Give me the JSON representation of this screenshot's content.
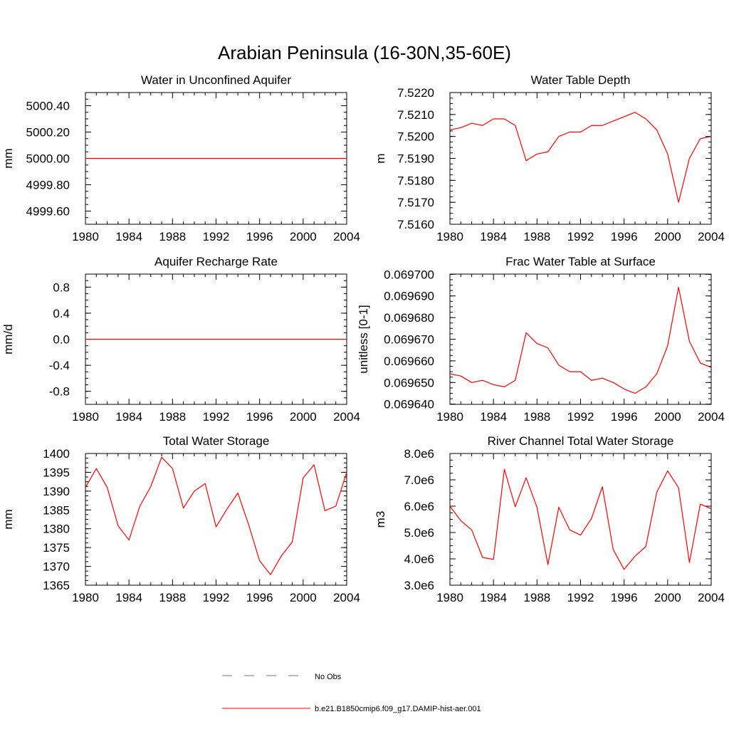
{
  "figure": {
    "title": "Arabian Peninsula (16-30N,35-60E)",
    "legend_items": [
      {
        "label": "No Obs",
        "color": "#6a6ab8",
        "style": "dashed"
      },
      {
        "label": "b.e21.B1850cmip6.f09_g17.DAMIP-hist-aer.001",
        "color": "#ff0000",
        "style": "solid"
      }
    ]
  },
  "chart_data": [
    {
      "type": "line",
      "title": "Water in Unconfined Aquifer",
      "ylabel": "mm",
      "xlim": [
        1980,
        2004
      ],
      "ylim": [
        4999.5,
        5000.5
      ],
      "xticks": [
        "1980",
        "1984",
        "1988",
        "1992",
        "1996",
        "2000",
        "2004"
      ],
      "yticks": [
        {
          "value": 5000.4,
          "label": "5000.40"
        },
        {
          "value": 5000.2,
          "label": "5000.20"
        },
        {
          "value": 5000.0,
          "label": "5000.00"
        },
        {
          "value": 4999.8,
          "label": "4999.80"
        },
        {
          "value": 4999.6,
          "label": "4999.60"
        }
      ],
      "x": [
        1980,
        2004
      ],
      "series": [
        {
          "color": "#ff0000",
          "values": [
            5000.0,
            5000.0
          ]
        }
      ]
    },
    {
      "type": "line",
      "title": "Water Table Depth",
      "ylabel": "m",
      "xlim": [
        1980,
        2004
      ],
      "ylim": [
        7.516,
        7.522
      ],
      "xticks": [
        "1980",
        "1984",
        "1988",
        "1992",
        "1996",
        "2000",
        "2004"
      ],
      "yticks": [
        {
          "value": 7.522,
          "label": "7.5220"
        },
        {
          "value": 7.521,
          "label": "7.5210"
        },
        {
          "value": 7.52,
          "label": "7.5200"
        },
        {
          "value": 7.519,
          "label": "7.5190"
        },
        {
          "value": 7.518,
          "label": "7.5180"
        },
        {
          "value": 7.517,
          "label": "7.5170"
        },
        {
          "value": 7.516,
          "label": "7.5160"
        }
      ],
      "x": [
        1980,
        1981,
        1982,
        1983,
        1984,
        1985,
        1986,
        1987,
        1988,
        1989,
        1990,
        1991,
        1992,
        1993,
        1994,
        1995,
        1996,
        1997,
        1998,
        1999,
        2000,
        2001,
        2002,
        2003,
        2004
      ],
      "series": [
        {
          "color": "#ff0000",
          "values": [
            7.5203,
            7.5204,
            7.5206,
            7.5205,
            7.5208,
            7.5208,
            7.5205,
            7.5189,
            7.5192,
            7.5193,
            7.52,
            7.5202,
            7.5202,
            7.5205,
            7.5205,
            7.5207,
            7.5209,
            7.5211,
            7.5208,
            7.5203,
            7.5192,
            7.517,
            7.519,
            7.5199,
            7.52
          ]
        }
      ]
    },
    {
      "type": "line",
      "title": "Aquifer Recharge Rate",
      "ylabel": "mm/d",
      "xlim": [
        1980,
        2004
      ],
      "ylim": [
        -1.0,
        1.0
      ],
      "xticks": [
        "1980",
        "1984",
        "1988",
        "1992",
        "1996",
        "2000",
        "2004"
      ],
      "yticks": [
        {
          "value": 0.8,
          "label": "0.8"
        },
        {
          "value": 0.4,
          "label": "0.4"
        },
        {
          "value": 0.0,
          "label": "0.0"
        },
        {
          "value": -0.4,
          "label": "-0.4"
        },
        {
          "value": -0.8,
          "label": "-0.8"
        }
      ],
      "x": [
        1980,
        2004
      ],
      "series": [
        {
          "color": "#ff0000",
          "values": [
            0.0,
            0.0
          ]
        }
      ]
    },
    {
      "type": "line",
      "title": "Frac Water Table at Surface",
      "ylabel": "unitless [0-1]",
      "xlim": [
        1980,
        2004
      ],
      "ylim": [
        0.0696399,
        0.0697001
      ],
      "xticks": [
        "1980",
        "1984",
        "1988",
        "1992",
        "1996",
        "2000",
        "2004"
      ],
      "yticks": [
        {
          "value": 0.0697,
          "label": "0.069700"
        },
        {
          "value": 0.06969,
          "label": "0.069690"
        },
        {
          "value": 0.06968,
          "label": "0.069680"
        },
        {
          "value": 0.06967,
          "label": "0.069670"
        },
        {
          "value": 0.06966,
          "label": "0.069660"
        },
        {
          "value": 0.06965,
          "label": "0.069650"
        },
        {
          "value": 0.06964,
          "label": "0.069640"
        }
      ],
      "x": [
        1980,
        1981,
        1982,
        1983,
        1984,
        1985,
        1986,
        1987,
        1988,
        1989,
        1990,
        1991,
        1992,
        1993,
        1994,
        1995,
        1996,
        1997,
        1998,
        1999,
        2000,
        2001,
        2002,
        2003,
        2004
      ],
      "series": [
        {
          "color": "#ff0000",
          "values": [
            0.069654,
            0.069653,
            0.06965,
            0.069651,
            0.069649,
            0.069648,
            0.069651,
            0.069673,
            0.069668,
            0.069666,
            0.069658,
            0.069655,
            0.069655,
            0.069651,
            0.069652,
            0.06965,
            0.069647,
            0.069645,
            0.069648,
            0.069654,
            0.069667,
            0.069694,
            0.069669,
            0.069659,
            0.069657
          ]
        }
      ]
    },
    {
      "type": "line",
      "title": "Total Water Storage",
      "ylabel": "mm",
      "xlim": [
        1980,
        2004
      ],
      "ylim": [
        1365,
        1400
      ],
      "xticks": [
        "1980",
        "1984",
        "1988",
        "1992",
        "1996",
        "2000",
        "2004"
      ],
      "yticks": [
        {
          "value": 1400,
          "label": "1400"
        },
        {
          "value": 1395,
          "label": "1395"
        },
        {
          "value": 1390,
          "label": "1390"
        },
        {
          "value": 1385,
          "label": "1385"
        },
        {
          "value": 1380,
          "label": "1380"
        },
        {
          "value": 1375,
          "label": "1375"
        },
        {
          "value": 1370,
          "label": "1370"
        },
        {
          "value": 1365,
          "label": "1365"
        }
      ],
      "x": [
        1980,
        1981,
        1982,
        1983,
        1984,
        1985,
        1986,
        1987,
        1988,
        1989,
        1990,
        1991,
        1992,
        1993,
        1994,
        1995,
        1996,
        1997,
        1998,
        1999,
        2000,
        2001,
        2002,
        2003,
        2004
      ],
      "series": [
        {
          "color": "#ff0000",
          "values": [
            1391.0,
            1396.0,
            1391.0,
            1380.8,
            1377.0,
            1386.0,
            1391.2,
            1399.0,
            1396.0,
            1385.5,
            1390.0,
            1392.0,
            1380.5,
            1385.2,
            1389.5,
            1381.0,
            1371.5,
            1367.8,
            1372.8,
            1376.5,
            1393.5,
            1397.0,
            1384.8,
            1386.0,
            1395.0
          ]
        }
      ]
    },
    {
      "type": "line",
      "title": "River Channel Total Water Storage",
      "ylabel": "m3",
      "xlim": [
        1980,
        2004
      ],
      "ylim": [
        3000000,
        8000000
      ],
      "xticks": [
        "1980",
        "1984",
        "1988",
        "1992",
        "1996",
        "2000",
        "2004"
      ],
      "yticks": [
        {
          "value": 8000000,
          "label": "8.0e6"
        },
        {
          "value": 7000000,
          "label": "7.0e6"
        },
        {
          "value": 6000000,
          "label": "6.0e6"
        },
        {
          "value": 5000000,
          "label": "5.0e6"
        },
        {
          "value": 4000000,
          "label": "4.0e6"
        },
        {
          "value": 3000000,
          "label": "3.0e6"
        }
      ],
      "x": [
        1980,
        1981,
        1982,
        1983,
        1984,
        1985,
        1986,
        1987,
        1988,
        1989,
        1990,
        1991,
        1992,
        1993,
        1994,
        1995,
        1996,
        1997,
        1998,
        1999,
        2000,
        2001,
        2002,
        2003,
        2004
      ],
      "series": [
        {
          "color": "#ff0000",
          "values": [
            6000000,
            5450000,
            5100000,
            4050000,
            3980000,
            7400000,
            5980000,
            7080000,
            5950000,
            3780000,
            5960000,
            5100000,
            4900000,
            5530000,
            6740000,
            4350000,
            3600000,
            4100000,
            4470000,
            6530000,
            7340000,
            6700000,
            3860000,
            6080000,
            5900000
          ]
        }
      ]
    }
  ]
}
